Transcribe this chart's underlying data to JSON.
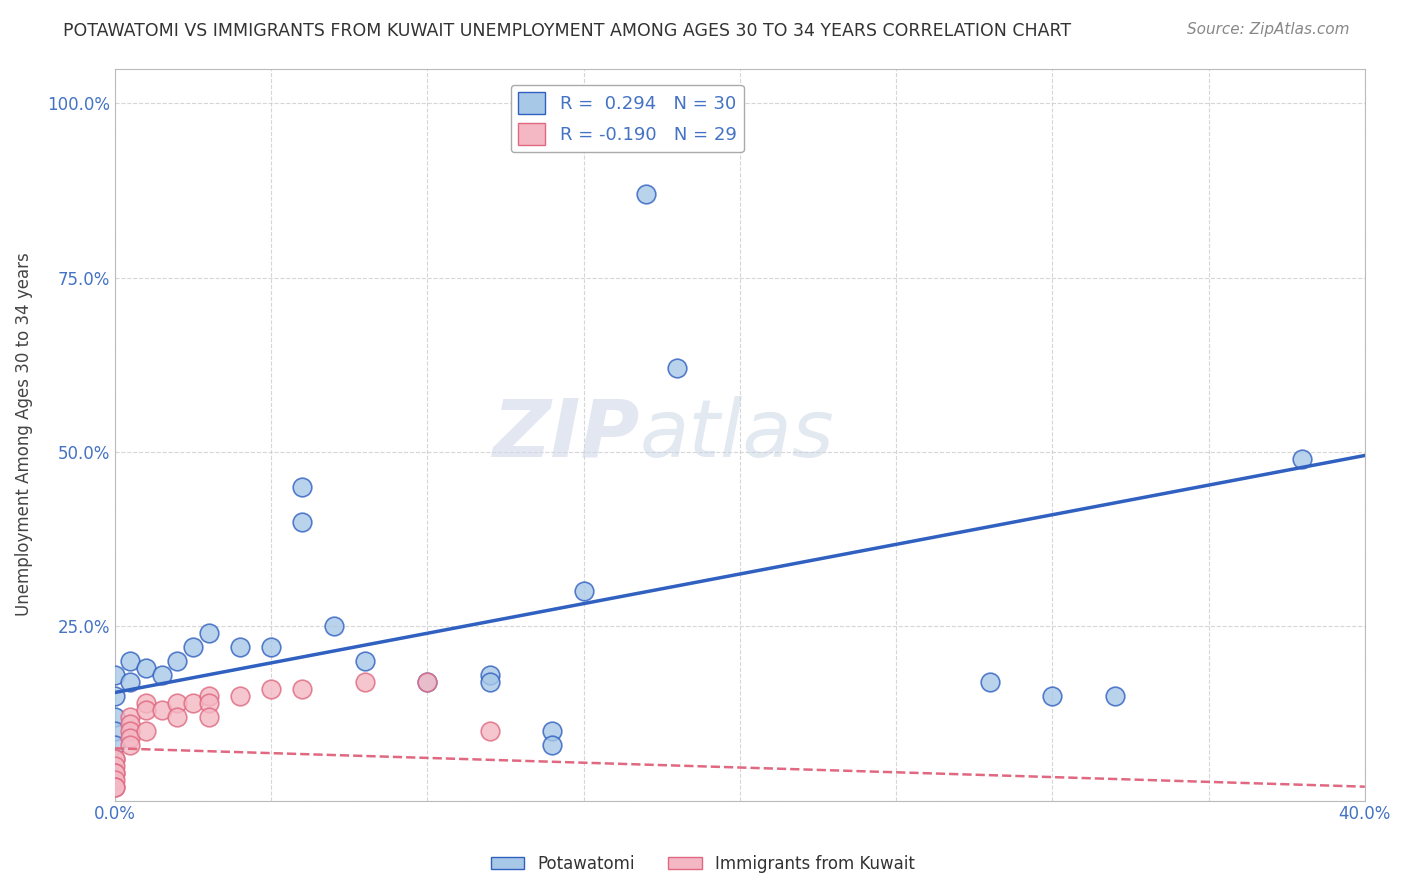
{
  "title": "POTAWATOMI VS IMMIGRANTS FROM KUWAIT UNEMPLOYMENT AMONG AGES 30 TO 34 YEARS CORRELATION CHART",
  "source": "Source: ZipAtlas.com",
  "ylabel_label": "Unemployment Among Ages 30 to 34 years",
  "xlim": [
    0.0,
    0.4
  ],
  "ylim": [
    0.0,
    1.05
  ],
  "legend_r1": "R =  0.294   N = 30",
  "legend_r2": "R = -0.190   N = 29",
  "watermark_zip": "ZIP",
  "watermark_atlas": "atlas",
  "blue_color": "#a8c8e8",
  "pink_color": "#f4b8c4",
  "line_blue": "#3060c0",
  "line_pink": "#e06880",
  "potawatomi_x": [
    0.0,
    0.0,
    0.0,
    0.0,
    0.0,
    0.005,
    0.005,
    0.01,
    0.015,
    0.02,
    0.025,
    0.03,
    0.04,
    0.05,
    0.06,
    0.06,
    0.07,
    0.08,
    0.1,
    0.12,
    0.12,
    0.14,
    0.14,
    0.15,
    0.17,
    0.18,
    0.28,
    0.3,
    0.32,
    0.38
  ],
  "potawatomi_y": [
    0.18,
    0.15,
    0.12,
    0.1,
    0.08,
    0.2,
    0.17,
    0.19,
    0.18,
    0.2,
    0.22,
    0.24,
    0.22,
    0.22,
    0.45,
    0.4,
    0.25,
    0.2,
    0.17,
    0.18,
    0.17,
    0.1,
    0.08,
    0.3,
    0.87,
    0.62,
    0.17,
    0.15,
    0.15,
    0.49
  ],
  "kuwait_x": [
    0.0,
    0.0,
    0.0,
    0.0,
    0.0,
    0.0,
    0.0,
    0.0,
    0.005,
    0.005,
    0.005,
    0.005,
    0.005,
    0.01,
    0.01,
    0.01,
    0.015,
    0.02,
    0.02,
    0.025,
    0.03,
    0.03,
    0.03,
    0.04,
    0.05,
    0.06,
    0.08,
    0.1,
    0.12
  ],
  "kuwait_y": [
    0.06,
    0.06,
    0.05,
    0.04,
    0.04,
    0.03,
    0.02,
    0.02,
    0.12,
    0.11,
    0.1,
    0.09,
    0.08,
    0.14,
    0.13,
    0.1,
    0.13,
    0.14,
    0.12,
    0.14,
    0.15,
    0.14,
    0.12,
    0.15,
    0.16,
    0.16,
    0.17,
    0.17,
    0.1
  ]
}
